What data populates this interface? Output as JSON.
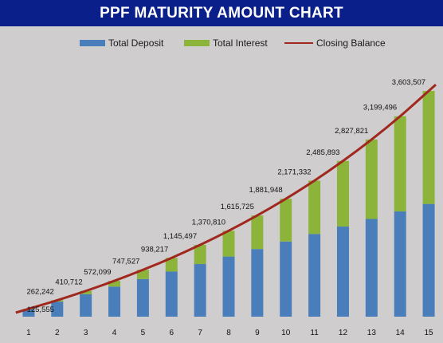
{
  "colors": {
    "title_bg": "#0a1f8a",
    "title_fg": "#ffffff",
    "background": "#cfcdcd",
    "deposit": "#4a7ebb",
    "interest": "#8cb33a",
    "balance_line": "#a0281e"
  },
  "chart_data": {
    "type": "bar",
    "stacked": true,
    "title": "PPF MATURITY AMOUNT CHART",
    "xlabel": "",
    "ylabel": "",
    "categories": [
      "1",
      "2",
      "3",
      "4",
      "5",
      "6",
      "7",
      "8",
      "9",
      "10",
      "11",
      "12",
      "13",
      "14",
      "15"
    ],
    "series": [
      {
        "name": "Total Deposit",
        "type": "bar",
        "values": [
          120000,
          240000,
          360000,
          480000,
          600000,
          720000,
          840000,
          960000,
          1080000,
          1200000,
          1320000,
          1440000,
          1560000,
          1680000,
          1800000
        ]
      },
      {
        "name": "Total Interest",
        "type": "bar",
        "values": [
          5555,
          22242,
          50712,
          92099,
          147527,
          218217,
          305497,
          410810,
          535725,
          681948,
          851332,
          1045893,
          1267821,
          1519496,
          1803507
        ]
      },
      {
        "name": "Closing Balance",
        "type": "line",
        "values": [
          125555,
          262242,
          410712,
          572099,
          747527,
          938217,
          1145497,
          1370810,
          1615725,
          1881948,
          2171332,
          2485893,
          2827821,
          3199496,
          3603507
        ]
      }
    ],
    "data_labels": [
      "125,555",
      "262,242",
      "410,712",
      "572,099",
      "747,527",
      "938,217",
      "1,145,497",
      "1,370,810",
      "1,615,725",
      "1,881,948",
      "2,171,332",
      "2,485,893",
      "2,827,821",
      "3,199,496",
      "3,603,507"
    ],
    "ylim": [
      0,
      3700000
    ],
    "grid": false,
    "legend": "top"
  }
}
